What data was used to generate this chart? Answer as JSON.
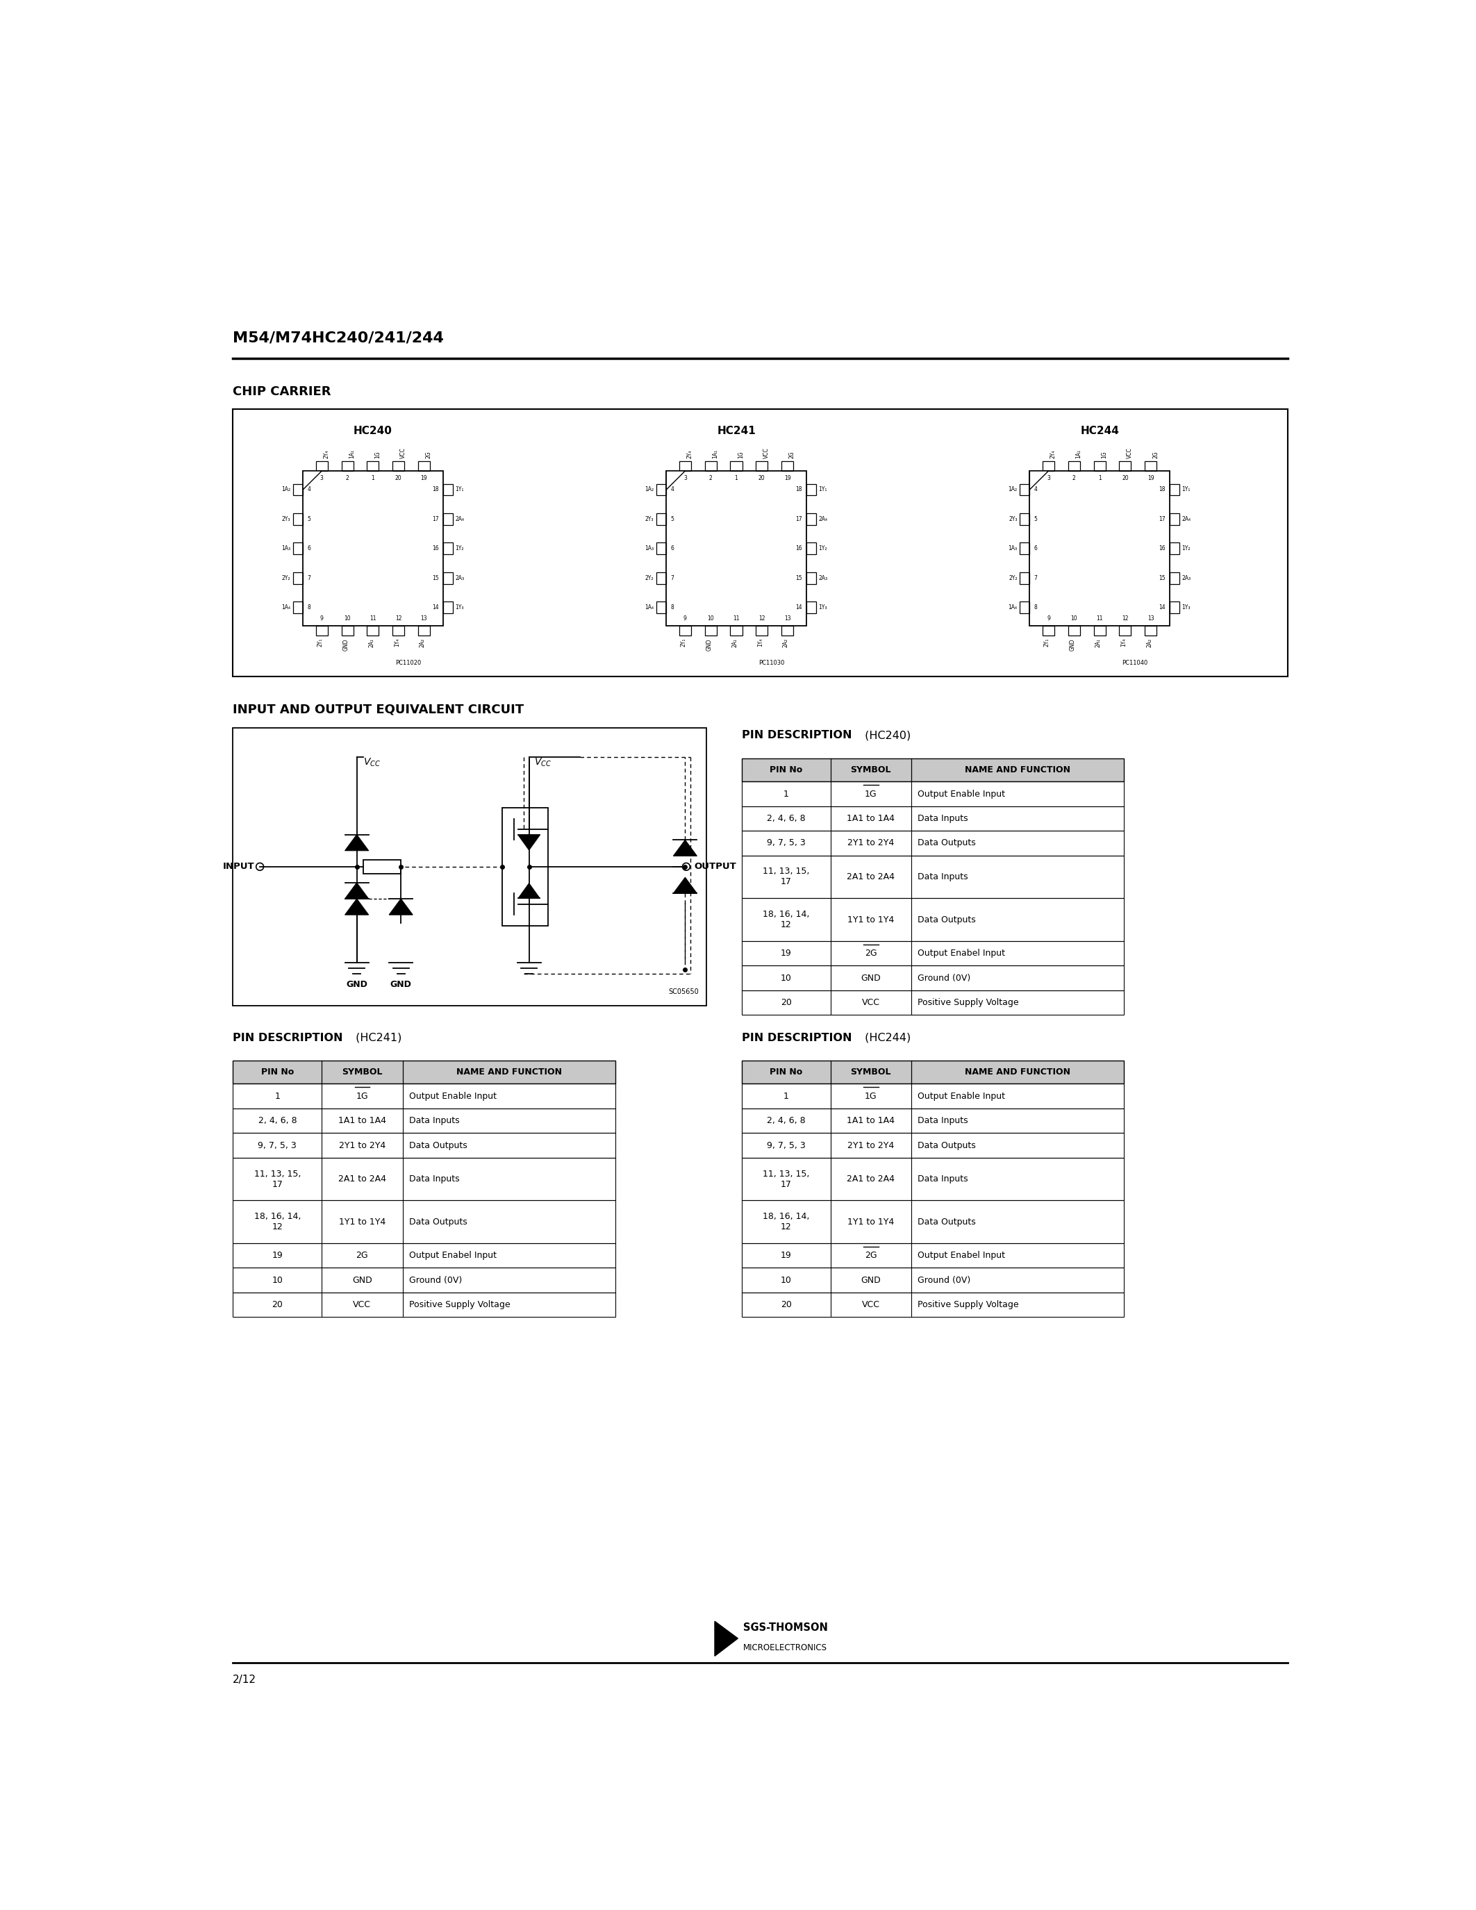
{
  "title": "M54/M74HC240/241/244",
  "section_chip": "CHIP CARRIER",
  "section_ioec": "INPUT AND OUTPUT EQUIVALENT CIRCUIT",
  "pin_desc_bold": "PIN DESCRIPTION",
  "pin_suffix_hc240": "(HC240)",
  "pin_suffix_hc241": "(HC241)",
  "pin_suffix_hc244": "(HC244)",
  "page_number": "2/12",
  "company_line1": "SGS-THOMSON",
  "company_line2": "MICROELECTRONICS",
  "hc240_label": "HC240",
  "hc241_label": "HC241",
  "hc244_label": "HC244",
  "pin_table_headers": [
    "PIN No",
    "SYMBOL",
    "NAME AND FUNCTION"
  ],
  "hc240_pins": [
    [
      "1",
      "1G",
      "Output Enable Input",
      true
    ],
    [
      "2, 4, 6, 8",
      "1A1 to 1A4",
      "Data Inputs",
      false
    ],
    [
      "9, 7, 5, 3",
      "2Y1 to 2Y4",
      "Data Outputs",
      false
    ],
    [
      "11, 13, 15,\n17",
      "2A1 to 2A4",
      "Data Inputs",
      false
    ],
    [
      "18, 16, 14,\n12",
      "1Y1 to 1Y4",
      "Data Outputs",
      false
    ],
    [
      "19",
      "2G",
      "Output Enabel Input",
      true
    ],
    [
      "10",
      "GND",
      "Ground (0V)",
      false
    ],
    [
      "20",
      "VCC",
      "Positive Supply Voltage",
      false
    ]
  ],
  "hc241_pins": [
    [
      "1",
      "1G",
      "Output Enable Input",
      true
    ],
    [
      "2, 4, 6, 8",
      "1A1 to 1A4",
      "Data Inputs",
      false
    ],
    [
      "9, 7, 5, 3",
      "2Y1 to 2Y4",
      "Data Outputs",
      false
    ],
    [
      "11, 13, 15,\n17",
      "2A1 to 2A4",
      "Data Inputs",
      false
    ],
    [
      "18, 16, 14,\n12",
      "1Y1 to 1Y4",
      "Data Outputs",
      false
    ],
    [
      "19",
      "2G",
      "Output Enabel Input",
      false
    ],
    [
      "10",
      "GND",
      "Ground (0V)",
      false
    ],
    [
      "20",
      "VCC",
      "Positive Supply Voltage",
      false
    ]
  ],
  "hc244_pins": [
    [
      "1",
      "1G",
      "Output Enable Input",
      true
    ],
    [
      "2, 4, 6, 8",
      "1A1 to 1A4",
      "Data Inputs",
      false
    ],
    [
      "9, 7, 5, 3",
      "2Y1 to 2Y4",
      "Data Outputs",
      false
    ],
    [
      "11, 13, 15,\n17",
      "2A1 to 2A4",
      "Data Inputs",
      false
    ],
    [
      "18, 16, 14,\n12",
      "1Y1 to 1Y4",
      "Data Outputs",
      false
    ],
    [
      "19",
      "2G",
      "Output Enabel Input",
      true
    ],
    [
      "10",
      "GND",
      "Ground (0V)",
      false
    ],
    [
      "20",
      "VCC",
      "Positive Supply Voltage",
      false
    ]
  ],
  "bg_color": "#ffffff",
  "text_color": "#000000",
  "table_header_bg": "#c8c8c8",
  "soc_label": "SC05650"
}
